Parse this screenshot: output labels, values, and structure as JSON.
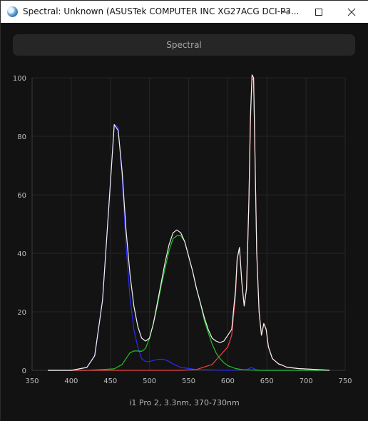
{
  "window": {
    "title": "Spectral: Unknown (ASUSTek COMPUTER INC XG27ACG DCI-P3..."
  },
  "toolbar": {
    "spectral_button_label": "Spectral"
  },
  "footer": {
    "instrument_label": "i1 Pro 2, 3.3nm, 370-730nm"
  },
  "chart_data": {
    "type": "line",
    "xlim": [
      350,
      750
    ],
    "ylim": [
      0,
      100
    ],
    "x_ticks": [
      350,
      400,
      450,
      500,
      550,
      600,
      650,
      700,
      750
    ],
    "y_ticks": [
      0,
      20,
      40,
      60,
      80,
      100
    ],
    "grid": true,
    "background": "#131313",
    "series": [
      {
        "color": "#2a2aff",
        "points": [
          [
            370,
            0
          ],
          [
            400,
            0
          ],
          [
            420,
            1
          ],
          [
            430,
            5
          ],
          [
            440,
            24
          ],
          [
            448,
            56
          ],
          [
            455,
            84
          ],
          [
            460,
            83
          ],
          [
            465,
            66
          ],
          [
            470,
            43
          ],
          [
            475,
            25
          ],
          [
            480,
            14
          ],
          [
            485,
            8
          ],
          [
            490,
            4
          ],
          [
            495,
            3
          ],
          [
            500,
            3
          ],
          [
            505,
            3.4
          ],
          [
            510,
            3.7
          ],
          [
            515,
            3.8
          ],
          [
            520,
            3.6
          ],
          [
            525,
            3
          ],
          [
            530,
            2.2
          ],
          [
            540,
            1
          ],
          [
            560,
            0.3
          ],
          [
            600,
            0
          ],
          [
            625,
            0.3
          ],
          [
            630,
            1
          ],
          [
            635,
            0.4
          ],
          [
            640,
            0
          ],
          [
            730,
            0
          ]
        ]
      },
      {
        "color": "#22c322",
        "points": [
          [
            370,
            0
          ],
          [
            420,
            0
          ],
          [
            440,
            0.3
          ],
          [
            455,
            0.5
          ],
          [
            465,
            2
          ],
          [
            470,
            4
          ],
          [
            475,
            6
          ],
          [
            480,
            6.6
          ],
          [
            485,
            6.6
          ],
          [
            490,
            6.5
          ],
          [
            495,
            7.5
          ],
          [
            500,
            11
          ],
          [
            505,
            16
          ],
          [
            510,
            22
          ],
          [
            515,
            29
          ],
          [
            520,
            35
          ],
          [
            525,
            41
          ],
          [
            530,
            45
          ],
          [
            535,
            46
          ],
          [
            540,
            46
          ],
          [
            545,
            44
          ],
          [
            550,
            39
          ],
          [
            555,
            34
          ],
          [
            560,
            28
          ],
          [
            565,
            23
          ],
          [
            570,
            17
          ],
          [
            575,
            13
          ],
          [
            580,
            9
          ],
          [
            585,
            6
          ],
          [
            590,
            4
          ],
          [
            595,
            2.6
          ],
          [
            600,
            1.6
          ],
          [
            610,
            0.6
          ],
          [
            620,
            0.2
          ],
          [
            640,
            0
          ],
          [
            730,
            0
          ]
        ]
      },
      {
        "color": "#ee4444",
        "points": [
          [
            370,
            0
          ],
          [
            540,
            0
          ],
          [
            560,
            0.3
          ],
          [
            580,
            2
          ],
          [
            590,
            5
          ],
          [
            600,
            8
          ],
          [
            605,
            12
          ],
          [
            610,
            26
          ],
          [
            612,
            38
          ],
          [
            615,
            42
          ],
          [
            618,
            30
          ],
          [
            621,
            22
          ],
          [
            624,
            28
          ],
          [
            627,
            58
          ],
          [
            629,
            85
          ],
          [
            631,
            100
          ],
          [
            633,
            99
          ],
          [
            635,
            70
          ],
          [
            637,
            40
          ],
          [
            640,
            20
          ],
          [
            643,
            12
          ],
          [
            646,
            16
          ],
          [
            649,
            14
          ],
          [
            652,
            8
          ],
          [
            657,
            4
          ],
          [
            665,
            2.2
          ],
          [
            670,
            1.7
          ],
          [
            675,
            1.1
          ],
          [
            690,
            0.6
          ],
          [
            720,
            0.2
          ],
          [
            730,
            0
          ]
        ]
      },
      {
        "color": "#f2f2f2",
        "points": [
          [
            370,
            0
          ],
          [
            400,
            0
          ],
          [
            420,
            1
          ],
          [
            430,
            5
          ],
          [
            440,
            24
          ],
          [
            448,
            56
          ],
          [
            455,
            84
          ],
          [
            460,
            82
          ],
          [
            465,
            68
          ],
          [
            470,
            48
          ],
          [
            475,
            33
          ],
          [
            480,
            22
          ],
          [
            485,
            15
          ],
          [
            490,
            11
          ],
          [
            495,
            10
          ],
          [
            500,
            11
          ],
          [
            505,
            16
          ],
          [
            510,
            23
          ],
          [
            515,
            30
          ],
          [
            520,
            37
          ],
          [
            525,
            43
          ],
          [
            530,
            47
          ],
          [
            535,
            48
          ],
          [
            540,
            47
          ],
          [
            545,
            44
          ],
          [
            550,
            39
          ],
          [
            555,
            34
          ],
          [
            560,
            28
          ],
          [
            565,
            23
          ],
          [
            570,
            18
          ],
          [
            575,
            14
          ],
          [
            580,
            11
          ],
          [
            585,
            10
          ],
          [
            590,
            9.5
          ],
          [
            595,
            10
          ],
          [
            600,
            12
          ],
          [
            605,
            14
          ],
          [
            610,
            28
          ],
          [
            612,
            38
          ],
          [
            615,
            42
          ],
          [
            618,
            30
          ],
          [
            621,
            22
          ],
          [
            624,
            28
          ],
          [
            627,
            58
          ],
          [
            629,
            87
          ],
          [
            631,
            101
          ],
          [
            633,
            100
          ],
          [
            635,
            70
          ],
          [
            637,
            40
          ],
          [
            640,
            20
          ],
          [
            643,
            12
          ],
          [
            646,
            16
          ],
          [
            649,
            14
          ],
          [
            652,
            8
          ],
          [
            657,
            4
          ],
          [
            665,
            2.2
          ],
          [
            670,
            1.7
          ],
          [
            675,
            1.1
          ],
          [
            690,
            0.6
          ],
          [
            720,
            0.2
          ],
          [
            730,
            0
          ]
        ]
      }
    ]
  }
}
